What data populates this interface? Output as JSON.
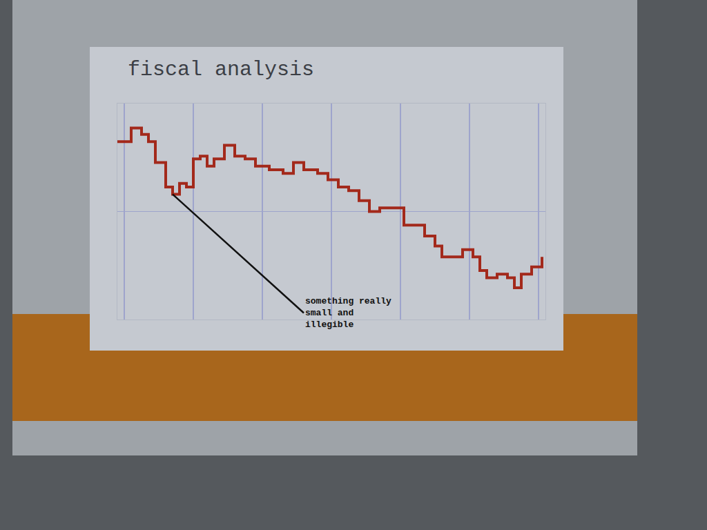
{
  "chart_data": {
    "type": "line",
    "title": "fiscal analysis",
    "x": [
      -1,
      1,
      2.5,
      3.5,
      4.5,
      6,
      7,
      8,
      9,
      10,
      11,
      12,
      13,
      14.5,
      16,
      17.5,
      19,
      21,
      23,
      24.5,
      26,
      28,
      29.5,
      31,
      32.5,
      34,
      35.5,
      37,
      39.5,
      40.5,
      42,
      43.5,
      45,
      46,
      47.5,
      49,
      50.5,
      51.5,
      52.5,
      54,
      55.5,
      56.5,
      57.5,
      59,
      60.5
    ],
    "values": [
      24.7,
      26.6,
      25.7,
      24.7,
      21.8,
      18.4,
      17.4,
      18.9,
      18.4,
      22.3,
      22.7,
      21.3,
      22.3,
      24.2,
      22.7,
      22.3,
      21.3,
      20.8,
      20.3,
      21.8,
      20.8,
      20.3,
      19.4,
      18.4,
      17.9,
      16.5,
      15.0,
      15.5,
      15.5,
      13.1,
      13.1,
      11.6,
      10.2,
      8.7,
      8.7,
      9.7,
      8.7,
      6.8,
      5.8,
      6.3,
      5.8,
      4.4,
      6.3,
      7.3,
      8.7
    ],
    "color": "#a3291b",
    "line_style": "step",
    "xlim": [
      -1,
      61
    ],
    "xticks": [
      0,
      10,
      20,
      30,
      40,
      50,
      60
    ],
    "ylim": [
      0,
      30
    ],
    "yticks": [
      0,
      15,
      30
    ],
    "grid": true,
    "tick_labels": false,
    "annotations": [
      {
        "text": [
          "something really",
          "small and",
          "illegible"
        ],
        "x": 7,
        "y": 17.4
      }
    ]
  }
}
